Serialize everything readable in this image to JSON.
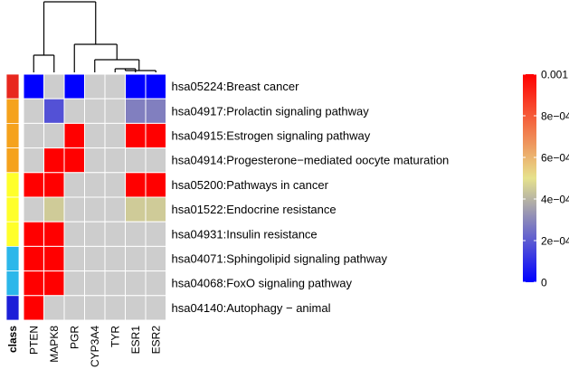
{
  "chart_data": {
    "type": "heatmap",
    "columns": [
      "PTEN",
      "MAPK8",
      "PGR",
      "CYP3A4",
      "TYR",
      "ESR1",
      "ESR2"
    ],
    "class_label": "class",
    "rows": [
      "hsa05224:Breast cancer",
      "hsa04917:Prolactin signaling pathway",
      "hsa04915:Estrogen signaling pathway",
      "hsa04914:Progesterone−mediated oocyte maturation",
      "hsa05200:Pathways in cancer",
      "hsa01522:Endocrine resistance",
      "hsa04931:Insulin resistance",
      "hsa04071:Sphingolipid signaling pathway",
      "hsa04068:FoxO signaling pathway",
      "hsa04140:Autophagy − animal"
    ],
    "highlighted_row_index": 2,
    "highlight_color": "#d21f1f",
    "row_class_colors": [
      "#e8281e",
      "#f5a21c",
      "#f5a21c",
      "#f5a21c",
      "#ffff2a",
      "#ffff2a",
      "#ffff2a",
      "#2bb7ea",
      "#2bb7ea",
      "#1c1fd8"
    ],
    "values": [
      [
        0.0,
        null,
        0.0,
        null,
        null,
        0.0,
        0.0
      ],
      [
        null,
        0.00018,
        null,
        null,
        null,
        0.00028,
        0.00028
      ],
      [
        null,
        null,
        0.001,
        null,
        null,
        0.001,
        0.001
      ],
      [
        null,
        0.001,
        0.001,
        null,
        null,
        null,
        null
      ],
      [
        0.001,
        0.001,
        null,
        null,
        null,
        0.001,
        0.001
      ],
      [
        null,
        0.00045,
        null,
        null,
        null,
        0.00045,
        0.00045
      ],
      [
        0.001,
        0.001,
        null,
        null,
        null,
        null,
        null
      ],
      [
        0.001,
        0.001,
        null,
        null,
        null,
        null,
        null
      ],
      [
        0.001,
        0.001,
        null,
        null,
        null,
        null,
        null
      ],
      [
        0.001,
        null,
        null,
        null,
        null,
        null,
        null
      ]
    ],
    "missing_color": "#cdcdcd",
    "colorscale": {
      "min": 0,
      "max": 0.001,
      "stops": [
        "#0000ff",
        "#e6e28c",
        "#ff0000"
      ],
      "ticks": [
        "0.001",
        "8e−04",
        "6e−04",
        "4e−04",
        "2e−04",
        "0"
      ],
      "tick_values": [
        0.001,
        0.0008,
        0.0006,
        0.0004,
        0.0002,
        0
      ]
    },
    "dendrogram": "column clustering tree above heatmap",
    "legend_position": "right"
  }
}
